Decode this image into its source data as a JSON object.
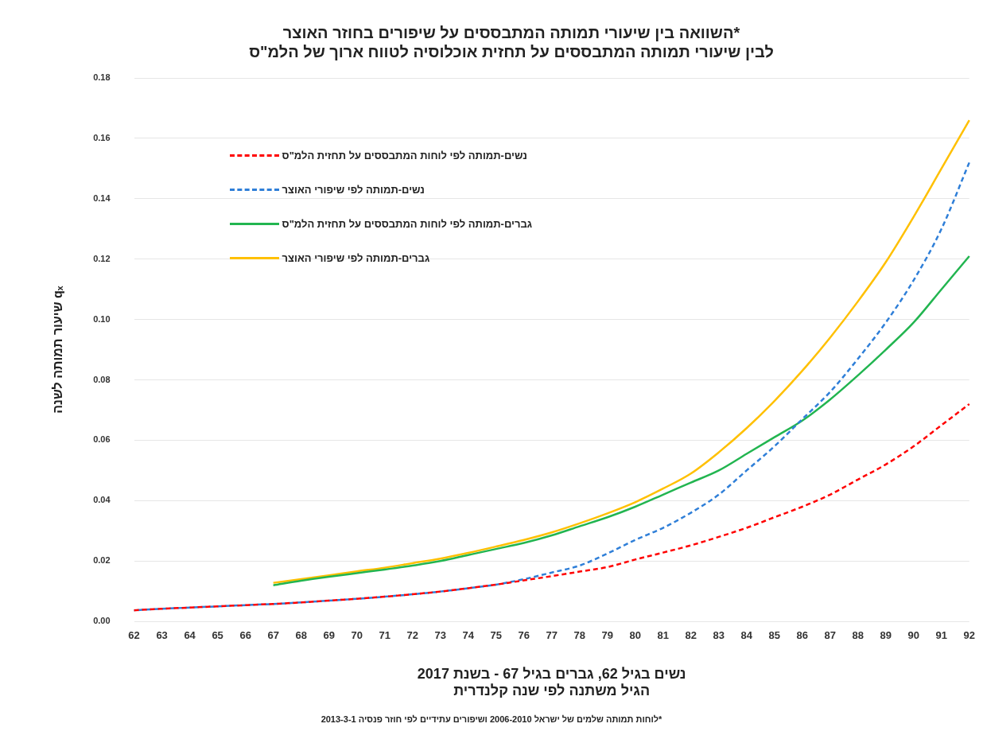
{
  "chart_data": {
    "type": "line",
    "title": "השוואה בין שיעורי תמותה המתבססים על שיפורים בחוזר האוצר*\nלבין שיעורי תמותה המתבססים על תחזית אוכלוסיה לטווח ארוך של הלמ\"ס",
    "xlabel": "נשים בגיל 62, גברים בגיל 67 - בשנת 2017\nהגיל משתנה לפי שנה קלנדרית",
    "ylabel": "שיעור תמותה לשנה qₓ",
    "annotations": [
      "*לוחות תמותה שלמים של ישראל 2006-2010 ושיפורים עתידיים לפי חוזר פנסיה 2013-3-1"
    ],
    "categories": [
      "62",
      "63",
      "64",
      "65",
      "66",
      "67",
      "68",
      "69",
      "70",
      "71",
      "72",
      "73",
      "74",
      "75",
      "76",
      "77",
      "78",
      "79",
      "80",
      "81",
      "82",
      "83",
      "84",
      "85",
      "86",
      "87",
      "88",
      "89",
      "90",
      "91",
      "92"
    ],
    "ylim": [
      0,
      0.18
    ],
    "yticks": [
      {
        "value": 0,
        "label": "0.00"
      },
      {
        "value": 0.02,
        "label": "0.02"
      },
      {
        "value": 0.04,
        "label": "0.04"
      },
      {
        "value": 0.06,
        "label": "0.06"
      },
      {
        "value": 0.08,
        "label": "0.08"
      },
      {
        "value": 0.1,
        "label": "0.10"
      },
      {
        "value": 0.12,
        "label": "0.12"
      },
      {
        "value": 0.14,
        "label": "0.14"
      },
      {
        "value": 0.16,
        "label": "0.16"
      },
      {
        "value": 0.18,
        "label": "0.18"
      }
    ],
    "grid": "y",
    "legend": "top left",
    "marker": "none",
    "series": [
      {
        "name": "נשים-תמותה לפי לוחות המתבססים על תחזית הלמ\"ס",
        "color": "#ff0000",
        "line_style": "dashed",
        "values": [
          0.0037,
          0.0042,
          0.0046,
          0.005,
          0.0054,
          0.0058,
          0.0063,
          0.0069,
          0.0075,
          0.0082,
          0.009,
          0.0099,
          0.011,
          0.0122,
          0.0136,
          0.015,
          0.0165,
          0.018,
          0.0205,
          0.0228,
          0.0252,
          0.028,
          0.031,
          0.0345,
          0.038,
          0.042,
          0.047,
          0.052,
          0.058,
          0.065,
          0.072
        ]
      },
      {
        "name": "נשים-תמותה לפי שיפורי האוצר",
        "color": "#2f7fd8",
        "line_style": "dashed",
        "values": [
          0.0037,
          0.0042,
          0.0046,
          0.005,
          0.0054,
          0.0058,
          0.0063,
          0.0069,
          0.0075,
          0.0082,
          0.009,
          0.0099,
          0.011,
          0.0122,
          0.014,
          0.0162,
          0.0185,
          0.0225,
          0.027,
          0.031,
          0.036,
          0.042,
          0.05,
          0.058,
          0.067,
          0.076,
          0.087,
          0.099,
          0.113,
          0.13,
          0.152
        ]
      },
      {
        "name": "גברים-תמותה לפי לוחות המתבססים על תחזית הלמ\"ס",
        "color": "#22b550",
        "line_style": "solid",
        "values": [
          null,
          null,
          null,
          null,
          null,
          0.012,
          0.0135,
          0.0148,
          0.016,
          0.0172,
          0.0185,
          0.02,
          0.022,
          0.024,
          0.026,
          0.0285,
          0.0315,
          0.0345,
          0.038,
          0.042,
          0.046,
          0.05,
          0.0555,
          0.061,
          0.0665,
          0.0735,
          0.0815,
          0.09,
          0.099,
          0.11,
          0.121
        ]
      },
      {
        "name": "גברים-תמותה לפי שיפורי האוצר",
        "color": "#ffc000",
        "line_style": "solid",
        "values": [
          null,
          null,
          null,
          null,
          null,
          0.0128,
          0.014,
          0.0153,
          0.0166,
          0.0178,
          0.0193,
          0.0208,
          0.0227,
          0.0248,
          0.027,
          0.0295,
          0.0325,
          0.0358,
          0.0395,
          0.044,
          0.049,
          0.056,
          0.064,
          0.073,
          0.083,
          0.094,
          0.106,
          0.119,
          0.134,
          0.15,
          0.166
        ]
      }
    ]
  }
}
